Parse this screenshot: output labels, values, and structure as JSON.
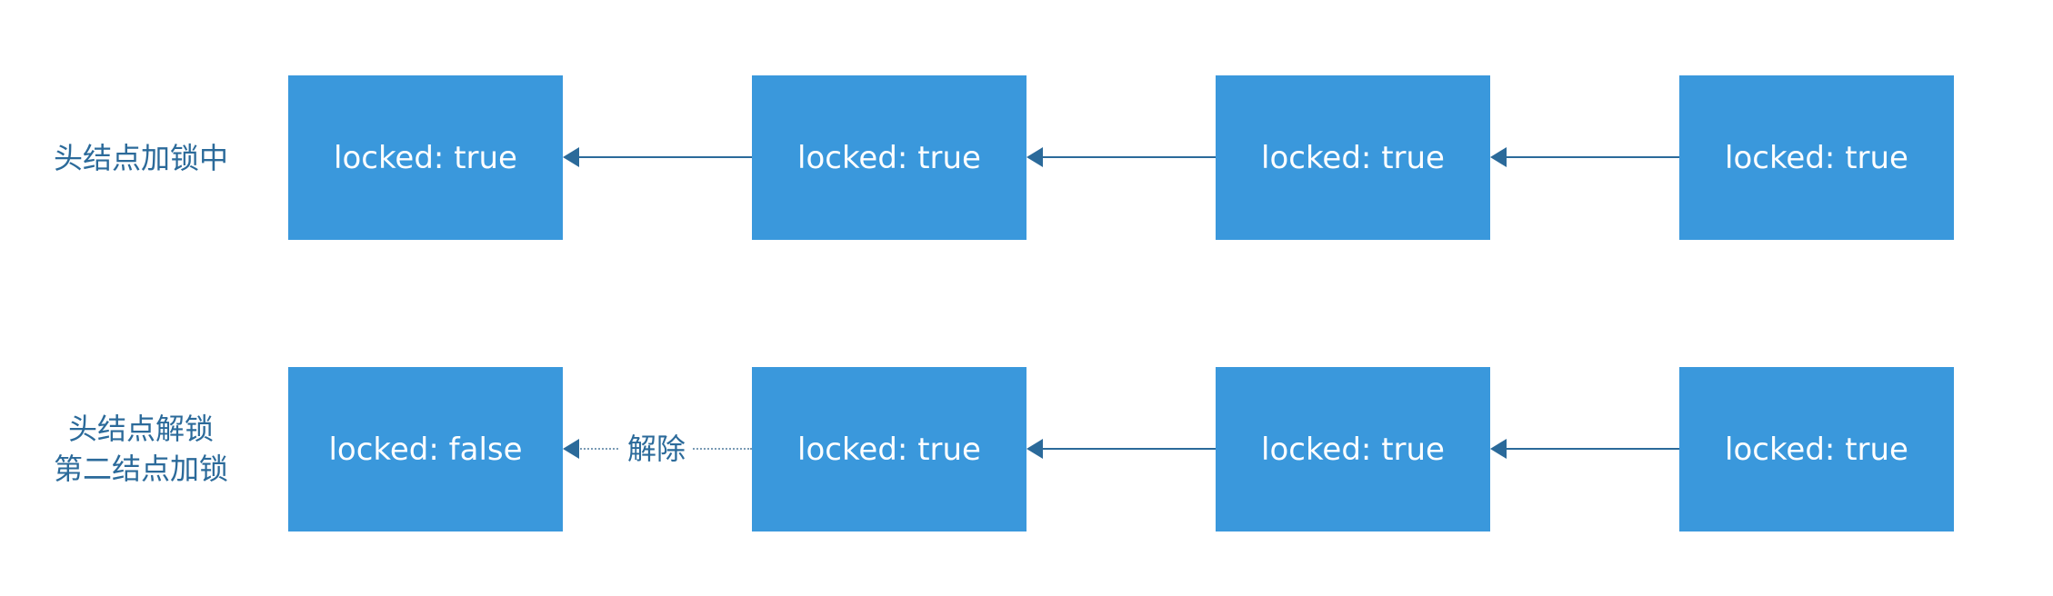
{
  "rows": [
    {
      "label_lines": [
        "头结点加锁中"
      ],
      "nodes": [
        {
          "text": "locked: true"
        },
        {
          "text": "locked: true"
        },
        {
          "text": "locked: true"
        },
        {
          "text": "locked: true"
        }
      ],
      "edges": [
        {
          "style": "solid",
          "label": ""
        },
        {
          "style": "solid",
          "label": ""
        },
        {
          "style": "solid",
          "label": ""
        }
      ]
    },
    {
      "label_lines": [
        "头结点解锁",
        "第二结点加锁"
      ],
      "nodes": [
        {
          "text": "locked: false"
        },
        {
          "text": "locked: true"
        },
        {
          "text": "locked: true"
        },
        {
          "text": "locked: true"
        }
      ],
      "edges": [
        {
          "style": "dotted",
          "label": "解除"
        },
        {
          "style": "solid",
          "label": ""
        },
        {
          "style": "solid",
          "label": ""
        }
      ]
    }
  ],
  "colors": {
    "node_fill": "#3a98dc",
    "node_text": "#ffffff",
    "label_text": "#2b6a9a",
    "arrow": "#2b6a9a"
  }
}
